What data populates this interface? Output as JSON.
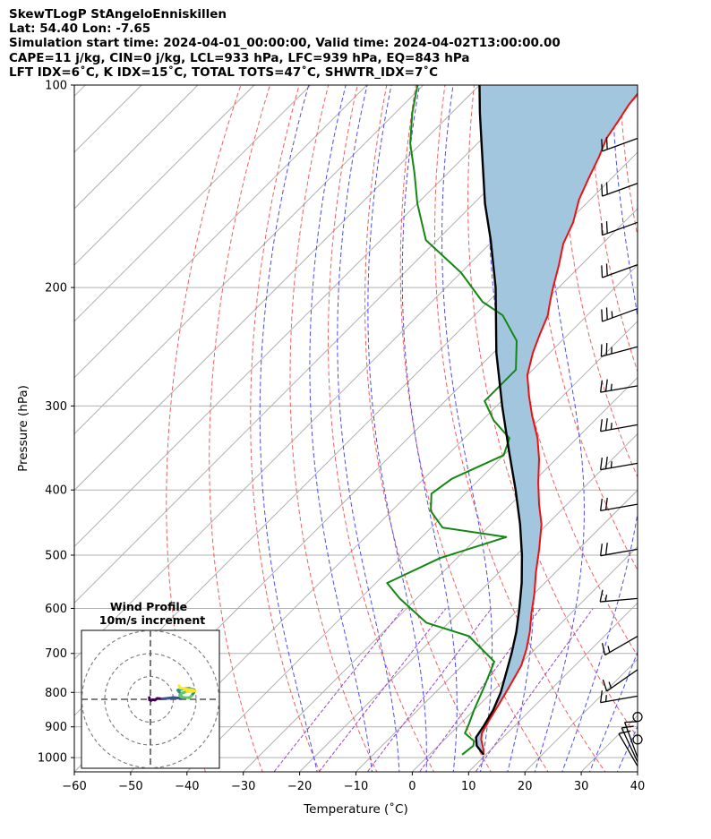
{
  "header": {
    "line1": "SkewTLogP StAngeloEnniskillen",
    "line2": "Lat: 54.40   Lon: -7.65",
    "line3": "Simulation start time: 2024-04-01_00:00:00, Valid time: 2024-04-02T13:00:00.00",
    "line4": "CAPE=11 j/kg, CIN=0 j/kg, LCL=933 hPa, LFC=939 hPa, EQ=843 hPa",
    "line5": "LFT IDX=6˚C, K IDX=15˚C, TOTAL TOTS=47˚C, SHWTR_IDX=7˚C"
  },
  "chart_data": {
    "type": "line",
    "title": "SkewTLogP StAngeloEnniskillen",
    "xlabel": "Temperature (˚C)",
    "ylabel": "Pressure (hPa)",
    "xlim": [
      -60,
      40
    ],
    "ylim": [
      1050,
      100
    ],
    "yscale": "log",
    "grid": true,
    "x_ticks": [
      "−60",
      "−50",
      "−40",
      "−30",
      "−20",
      "−10",
      "0",
      "10",
      "20",
      "30",
      "40"
    ],
    "y_ticks": [
      "1000",
      "900",
      "800",
      "700",
      "600",
      "500",
      "400",
      "300",
      "200",
      "100"
    ],
    "series": [
      {
        "role": "temperature",
        "color": "#ee1111",
        "points": [
          [
            9.6,
            990
          ],
          [
            8.5,
            970
          ],
          [
            6.5,
            940
          ],
          [
            5.5,
            920
          ],
          [
            4.5,
            880
          ],
          [
            3.3,
            830
          ],
          [
            2.0,
            780
          ],
          [
            0.5,
            730
          ],
          [
            -1.5,
            690
          ],
          [
            -4,
            650
          ],
          [
            -7,
            610
          ],
          [
            -10,
            570
          ],
          [
            -13.5,
            530
          ],
          [
            -17,
            490
          ],
          [
            -21,
            450
          ],
          [
            -25,
            420
          ],
          [
            -29,
            390
          ],
          [
            -33,
            360
          ],
          [
            -37,
            335
          ],
          [
            -42,
            310
          ],
          [
            -46,
            290
          ],
          [
            -50,
            270
          ],
          [
            -53,
            250
          ],
          [
            -55,
            235
          ],
          [
            -57,
            220
          ],
          [
            -59,
            210
          ],
          [
            -61,
            200
          ],
          [
            -64,
            185
          ],
          [
            -67,
            172
          ],
          [
            -69,
            160
          ],
          [
            -72,
            148
          ],
          [
            -74,
            138
          ],
          [
            -76,
            128
          ],
          [
            -78,
            120
          ],
          [
            -79,
            113
          ],
          [
            -80,
            107
          ],
          [
            -80.5,
            102
          ],
          [
            -81,
            100
          ]
        ]
      },
      {
        "role": "dewpoint",
        "color": "#118811",
        "points": [
          [
            5.8,
            990
          ],
          [
            6.2,
            960
          ],
          [
            5.5,
            945
          ],
          [
            2.5,
            920
          ],
          [
            1.5,
            890
          ],
          [
            0,
            850
          ],
          [
            -2.5,
            780
          ],
          [
            -5,
            720
          ],
          [
            -14,
            660
          ],
          [
            -24,
            630
          ],
          [
            -33,
            580
          ],
          [
            -38,
            550
          ],
          [
            -33,
            505
          ],
          [
            -25,
            470
          ],
          [
            -38,
            455
          ],
          [
            -43,
            430
          ],
          [
            -46,
            405
          ],
          [
            -45,
            385
          ],
          [
            -40,
            355
          ],
          [
            -42,
            335
          ],
          [
            -48,
            315
          ],
          [
            -53,
            295
          ],
          [
            -53,
            265
          ],
          [
            -58,
            240
          ],
          [
            -65,
            220
          ],
          [
            -71,
            210
          ],
          [
            -80,
            190
          ],
          [
            -92,
            170
          ],
          [
            -100,
            150
          ],
          [
            -106,
            135
          ],
          [
            -112,
            122
          ],
          [
            -117,
            110
          ],
          [
            -121,
            100
          ]
        ]
      },
      {
        "role": "parcel",
        "color": "#000000",
        "points": [
          [
            9.6,
            990
          ],
          [
            6.8,
            960
          ],
          [
            5.2,
            933
          ],
          [
            4.6,
            900
          ],
          [
            3.4,
            850
          ],
          [
            1.6,
            800
          ],
          [
            -0.8,
            750
          ],
          [
            -3.4,
            700
          ],
          [
            -6.4,
            650
          ],
          [
            -10.0,
            600
          ],
          [
            -14.1,
            550
          ],
          [
            -19.0,
            500
          ],
          [
            -24.8,
            450
          ],
          [
            -31.7,
            400
          ],
          [
            -39.8,
            350
          ],
          [
            -49.0,
            300
          ],
          [
            -59.5,
            250
          ],
          [
            -71.2,
            200
          ],
          [
            -80.5,
            170
          ],
          [
            -88.0,
            150
          ],
          [
            -98.0,
            125
          ],
          [
            -105.0,
            110
          ],
          [
            -110.0,
            100
          ]
        ]
      }
    ],
    "shading": {
      "color": "#a3c6df",
      "between": [
        "temperature",
        "parcel"
      ]
    },
    "wind_barbs": [
      {
        "p": 120,
        "dir": 250,
        "spd": 22
      },
      {
        "p": 140,
        "dir": 250,
        "spd": 22
      },
      {
        "p": 160,
        "dir": 250,
        "spd": 22
      },
      {
        "p": 185,
        "dir": 250,
        "spd": 22
      },
      {
        "p": 215,
        "dir": 250,
        "spd": 25
      },
      {
        "p": 245,
        "dir": 255,
        "spd": 25
      },
      {
        "p": 280,
        "dir": 260,
        "spd": 25
      },
      {
        "p": 320,
        "dir": 260,
        "spd": 25
      },
      {
        "p": 365,
        "dir": 260,
        "spd": 25
      },
      {
        "p": 420,
        "dir": 260,
        "spd": 22
      },
      {
        "p": 490,
        "dir": 260,
        "spd": 20
      },
      {
        "p": 580,
        "dir": 265,
        "spd": 15
      },
      {
        "p": 660,
        "dir": 240,
        "spd": 15
      },
      {
        "p": 740,
        "dir": 235,
        "spd": 15
      },
      {
        "p": 810,
        "dir": 260,
        "spd": 15
      },
      {
        "p": 870,
        "dir": 0,
        "spd": 0
      },
      {
        "p": 940,
        "dir": 0,
        "spd": 0
      },
      {
        "p": 1000,
        "dir": 340,
        "spd": 10
      },
      {
        "p": 1015,
        "dir": 335,
        "spd": 10
      },
      {
        "p": 1030,
        "dir": 330,
        "spd": 10
      }
    ],
    "hodograph": {
      "title_line1": "Wind Profile",
      "title_line2": "10m/s increment",
      "rings_ms": [
        10,
        20,
        30
      ],
      "max_ms": 35,
      "trace_uv": [
        [
          -0.5,
          0.8
        ],
        [
          -0.4,
          -0.2
        ],
        [
          0.2,
          -0.5
        ],
        [
          1,
          -0.2
        ],
        [
          2,
          -0.3
        ],
        [
          3,
          0.4
        ],
        [
          5,
          0.2
        ],
        [
          8,
          0.5
        ],
        [
          10,
          0.8
        ],
        [
          12,
          0.6
        ],
        [
          13,
          0.3
        ],
        [
          13.5,
          0.8
        ],
        [
          13.2,
          2.5
        ],
        [
          12,
          4.0
        ],
        [
          14,
          4.5
        ],
        [
          17,
          4.8
        ],
        [
          19,
          4.2
        ],
        [
          19,
          3.0
        ],
        [
          18,
          1.5
        ],
        [
          17,
          0.7
        ],
        [
          15,
          0.8
        ],
        [
          13.5,
          1.0
        ],
        [
          12.8,
          1.8
        ],
        [
          14,
          2.8
        ],
        [
          16,
          3.4
        ],
        [
          18.5,
          3.5
        ],
        [
          19.5,
          3.7
        ],
        [
          18,
          4.2
        ],
        [
          15,
          4.5
        ],
        [
          13,
          5.0
        ],
        [
          12.5,
          6.0
        ]
      ],
      "colormap": [
        "#440154",
        "#3b528b",
        "#21918c",
        "#5ec962",
        "#fde725"
      ]
    }
  }
}
